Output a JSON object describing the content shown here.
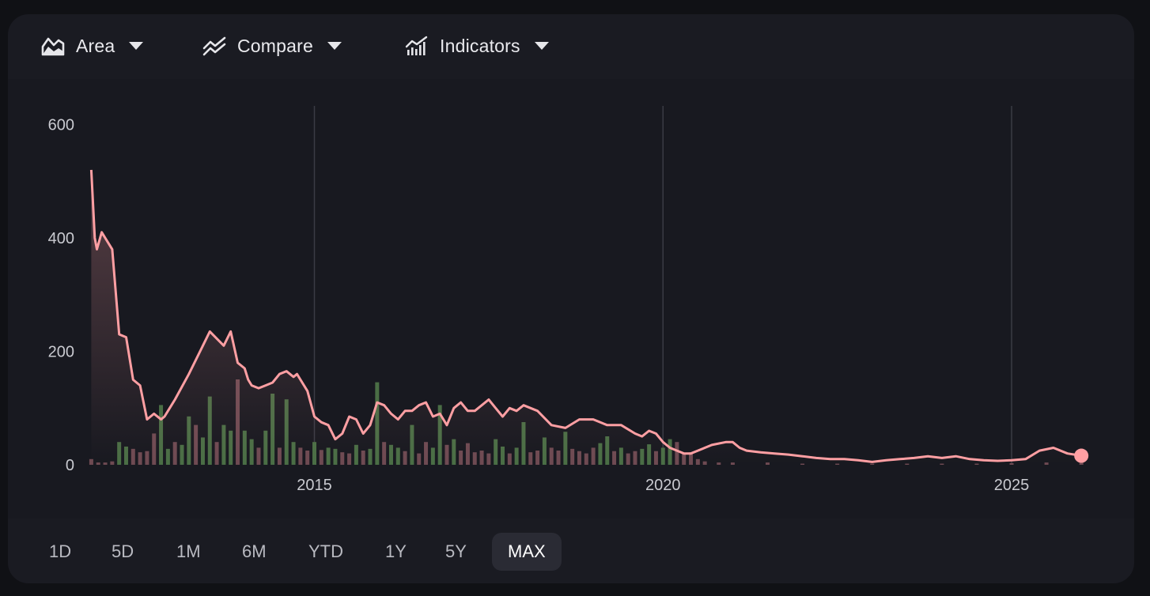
{
  "toolbar": {
    "area_label": "Area",
    "compare_label": "Compare",
    "indicators_label": "Indicators"
  },
  "icons": {
    "area": "area-chart-icon",
    "compare": "compare-icon",
    "indicators": "indicators-icon",
    "caret": "chevron-down-icon"
  },
  "ranges": [
    "1D",
    "5D",
    "1M",
    "6M",
    "YTD",
    "1Y",
    "5Y",
    "MAX"
  ],
  "active_range": "MAX",
  "colors": {
    "line": "#ff9fa3",
    "volume_up": "#4a6e45",
    "volume_down": "#6e4a52",
    "grid": "#3a3b44"
  },
  "chart_data": {
    "type": "area",
    "y_ticks": [
      "600",
      "400",
      "200",
      "0"
    ],
    "ylim": [
      0,
      630
    ],
    "x_ticks": [
      "2015",
      "2020",
      "2025"
    ],
    "xlim": [
      2011.75,
      2026.1
    ],
    "grid": "vertical lines at x ticks",
    "series": [
      {
        "x": [
          2011.8,
          2011.85,
          2011.88,
          2011.95,
          2012.0,
          2012.1,
          2012.2,
          2012.3,
          2012.4,
          2012.5,
          2012.6,
          2012.7,
          2012.8,
          2012.85,
          2012.9,
          2013.0,
          2013.2,
          2013.4,
          2013.5,
          2013.7,
          2013.8,
          2013.9,
          2014.0,
          2014.05,
          2014.1,
          2014.2,
          2014.3,
          2014.4,
          2014.5,
          2014.6,
          2014.7,
          2014.75,
          2014.8,
          2014.9,
          2015.0,
          2015.1,
          2015.2,
          2015.3,
          2015.4,
          2015.5,
          2015.6,
          2015.7,
          2015.8,
          2015.9,
          2016.0,
          2016.1,
          2016.2,
          2016.3,
          2016.4,
          2016.5,
          2016.6,
          2016.7,
          2016.8,
          2016.9,
          2017.0,
          2017.1,
          2017.2,
          2017.3,
          2017.4,
          2017.5,
          2017.6,
          2017.7,
          2017.8,
          2017.9,
          2018.0,
          2018.2,
          2018.4,
          2018.6,
          2018.8,
          2019.0,
          2019.2,
          2019.4,
          2019.6,
          2019.7,
          2019.8,
          2019.9,
          2020.0,
          2020.1,
          2020.2,
          2020.3,
          2020.4,
          2020.5,
          2020.7,
          2020.9,
          2021.0,
          2021.1,
          2021.2,
          2021.4,
          2021.6,
          2021.8,
          2022.0,
          2022.2,
          2022.4,
          2022.6,
          2022.8,
          2023.0,
          2023.2,
          2023.4,
          2023.6,
          2023.8,
          2024.0,
          2024.2,
          2024.4,
          2024.6,
          2024.8,
          2025.0,
          2025.2,
          2025.4,
          2025.6,
          2025.8,
          2026.0
        ],
        "y": [
          520,
          400,
          380,
          410,
          400,
          380,
          230,
          225,
          150,
          140,
          80,
          90,
          80,
          85,
          95,
          115,
          160,
          210,
          235,
          210,
          235,
          180,
          170,
          150,
          140,
          135,
          140,
          145,
          160,
          165,
          155,
          160,
          150,
          130,
          85,
          75,
          70,
          45,
          55,
          85,
          80,
          55,
          70,
          110,
          105,
          90,
          80,
          95,
          95,
          105,
          110,
          85,
          90,
          70,
          100,
          110,
          95,
          95,
          105,
          115,
          100,
          85,
          100,
          95,
          105,
          95,
          70,
          65,
          80,
          80,
          70,
          70,
          55,
          50,
          60,
          55,
          40,
          30,
          25,
          20,
          20,
          25,
          35,
          40,
          40,
          30,
          25,
          22,
          20,
          18,
          15,
          12,
          10,
          10,
          8,
          5,
          8,
          10,
          12,
          15,
          12,
          15,
          10,
          8,
          7,
          8,
          10,
          25,
          30,
          20,
          16
        ]
      }
    ],
    "volume": {
      "x": [
        2011.8,
        2011.9,
        2012.0,
        2012.1,
        2012.2,
        2012.3,
        2012.4,
        2012.5,
        2012.6,
        2012.7,
        2012.8,
        2012.9,
        2013.0,
        2013.1,
        2013.2,
        2013.3,
        2013.4,
        2013.5,
        2013.6,
        2013.7,
        2013.8,
        2013.9,
        2014.0,
        2014.1,
        2014.2,
        2014.3,
        2014.4,
        2014.5,
        2014.6,
        2014.7,
        2014.8,
        2014.9,
        2015.0,
        2015.1,
        2015.2,
        2015.3,
        2015.4,
        2015.5,
        2015.6,
        2015.7,
        2015.8,
        2015.9,
        2016.0,
        2016.1,
        2016.2,
        2016.3,
        2016.4,
        2016.5,
        2016.6,
        2016.7,
        2016.8,
        2016.9,
        2017.0,
        2017.1,
        2017.2,
        2017.3,
        2017.4,
        2017.5,
        2017.6,
        2017.7,
        2017.8,
        2017.9,
        2018.0,
        2018.1,
        2018.2,
        2018.3,
        2018.4,
        2018.5,
        2018.6,
        2018.7,
        2018.8,
        2018.9,
        2019.0,
        2019.1,
        2019.2,
        2019.3,
        2019.4,
        2019.5,
        2019.6,
        2019.7,
        2019.8,
        2019.9,
        2020.0,
        2020.1,
        2020.2,
        2020.3,
        2020.4,
        2020.5,
        2020.6,
        2020.8,
        2021.0,
        2021.5,
        2022.0,
        2022.5,
        2023.0,
        2023.5,
        2024.0,
        2024.5,
        2025.0,
        2025.5,
        2026.0
      ],
      "values": [
        10,
        4,
        4,
        6,
        40,
        32,
        28,
        22,
        24,
        55,
        105,
        28,
        40,
        35,
        85,
        70,
        48,
        120,
        40,
        70,
        60,
        150,
        60,
        45,
        30,
        60,
        125,
        30,
        115,
        40,
        30,
        25,
        40,
        26,
        30,
        28,
        22,
        20,
        35,
        25,
        28,
        145,
        40,
        35,
        30,
        24,
        70,
        20,
        40,
        30,
        105,
        35,
        45,
        25,
        38,
        22,
        25,
        20,
        45,
        32,
        20,
        30,
        75,
        22,
        25,
        48,
        30,
        25,
        58,
        28,
        24,
        20,
        30,
        38,
        50,
        24,
        30,
        20,
        24,
        28,
        36,
        24,
        30,
        45,
        40,
        20,
        22,
        10,
        6,
        4,
        4,
        4,
        2,
        2,
        2,
        2,
        2,
        2,
        3,
        4,
        4
      ]
    }
  }
}
